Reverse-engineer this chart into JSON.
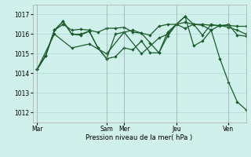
{
  "background_color": "#cff0eb",
  "grid_color": "#aaddd8",
  "line_color": "#1a5c2a",
  "xlabel": "Pression niveau de la mer( hPa )",
  "ylim": [
    1011.5,
    1017.5
  ],
  "yticks": [
    1012,
    1013,
    1014,
    1015,
    1016,
    1017
  ],
  "day_labels": [
    "Mar",
    "Sam",
    "Mer",
    "Jeu",
    "Ven"
  ],
  "day_positions": [
    0,
    16,
    20,
    32,
    44
  ],
  "xlim": [
    -1,
    48
  ],
  "series": [
    {
      "x": [
        0,
        2,
        4,
        6,
        8,
        10,
        12,
        14,
        16,
        18,
        20,
        22,
        24,
        26,
        28,
        30,
        32,
        34,
        36,
        38,
        40,
        42,
        44,
        46,
        48
      ],
      "y": [
        1014.2,
        1014.9,
        1016.2,
        1016.5,
        1016.2,
        1016.25,
        1016.2,
        1016.1,
        1016.3,
        1016.3,
        1016.35,
        1016.1,
        1016.05,
        1015.95,
        1016.4,
        1016.5,
        1016.5,
        1016.6,
        1016.5,
        1016.5,
        1016.45,
        1016.45,
        1016.45,
        1016.4,
        1016.4
      ]
    },
    {
      "x": [
        0,
        2,
        4,
        6,
        8,
        10,
        12,
        14,
        16,
        18,
        20,
        22,
        24,
        26,
        28,
        30,
        32,
        34,
        36,
        38,
        40,
        42,
        44,
        46,
        48
      ],
      "y": [
        1014.2,
        1014.9,
        1016.2,
        1016.65,
        1016.0,
        1015.95,
        1016.15,
        1015.3,
        1014.75,
        1016.0,
        1016.1,
        1016.2,
        1016.05,
        1015.55,
        1015.05,
        1016.1,
        1016.5,
        1016.9,
        1016.5,
        1015.95,
        1016.5,
        1016.4,
        1016.5,
        1015.95,
        1015.9
      ]
    },
    {
      "x": [
        0,
        4,
        8,
        12,
        16,
        20,
        24,
        28,
        30,
        32,
        34,
        36,
        38,
        40,
        42,
        44,
        46,
        48
      ],
      "y": [
        1014.2,
        1016.0,
        1015.3,
        1015.5,
        1015.0,
        1016.1,
        1015.0,
        1015.8,
        1016.0,
        1016.5,
        1016.3,
        1016.5,
        1016.45,
        1016.2,
        1016.45,
        1016.35,
        1016.2,
        1016.0
      ]
    },
    {
      "x": [
        0,
        2,
        4,
        6,
        8,
        10,
        12,
        14,
        16,
        18,
        20,
        22,
        24,
        26,
        28,
        30,
        32,
        34,
        36,
        38,
        40,
        42,
        44,
        46,
        48
      ],
      "y": [
        1014.2,
        1014.9,
        1016.2,
        1016.65,
        1016.0,
        1016.0,
        1016.15,
        1015.3,
        1014.75,
        1014.85,
        1015.3,
        1015.2,
        1015.65,
        1015.05,
        1015.05,
        1015.9,
        1016.5,
        1016.9,
        1015.4,
        1015.65,
        1016.2,
        1014.75,
        1013.55,
        1012.55,
        1012.15
      ]
    }
  ],
  "ms": 2.2,
  "lw": 0.9
}
